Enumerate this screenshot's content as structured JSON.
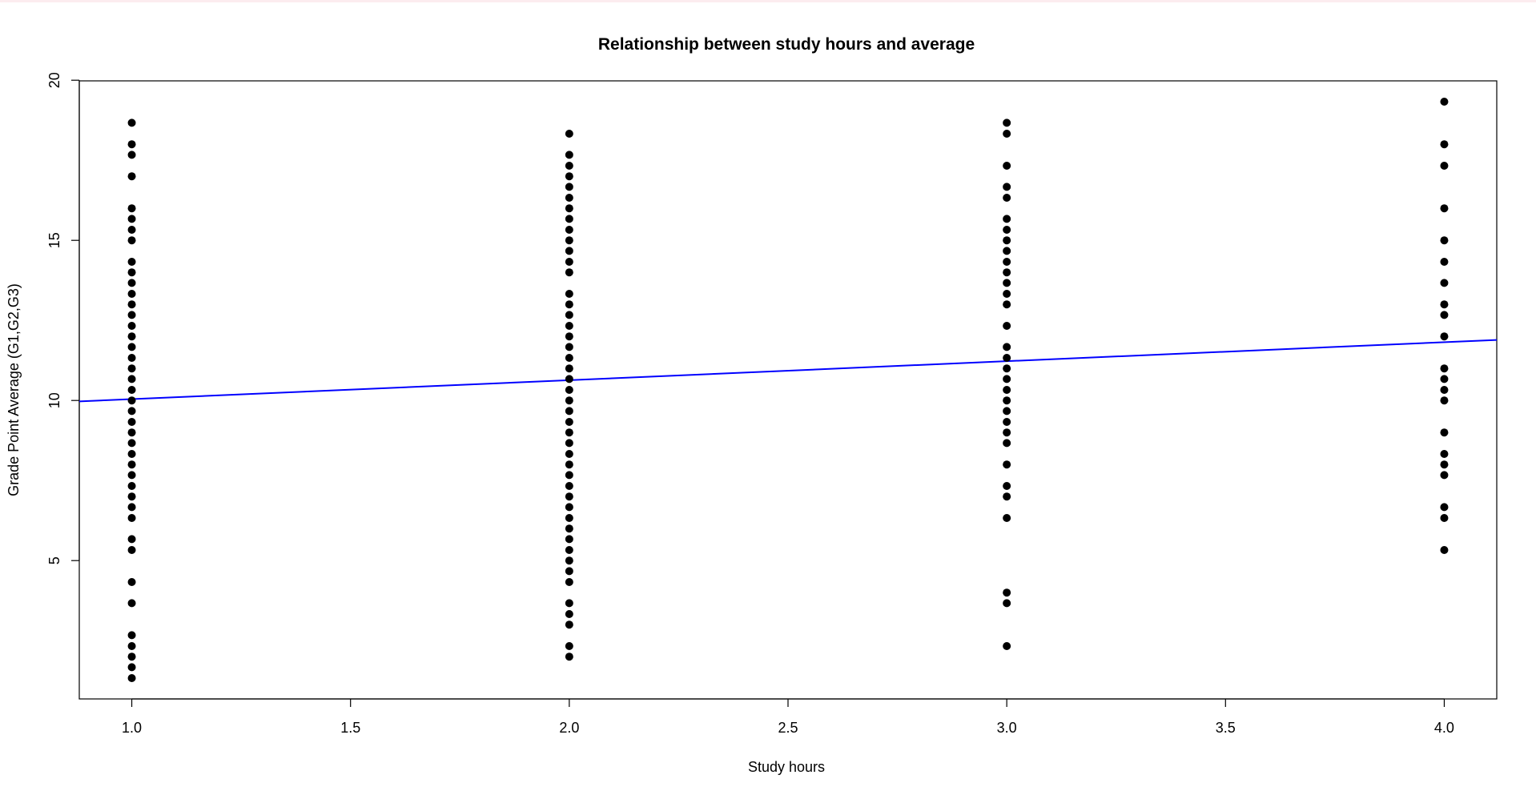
{
  "chart_data": {
    "type": "scatter",
    "title": "Relationship between study hours and average",
    "xlabel": "Study hours",
    "ylabel": "Grade Point Average (G1,G2,G3)",
    "xlim": [
      0.88,
      4.12
    ],
    "ylim": [
      0.68,
      19.98
    ],
    "x_ticks": [
      "1.0",
      "1.5",
      "2.0",
      "2.5",
      "3.0",
      "3.5",
      "4.0"
    ],
    "y_ticks": [
      "5",
      "10",
      "15",
      "20"
    ],
    "grid": false,
    "legend": "none",
    "point_color": "#000000",
    "line_color": "#0000ff",
    "series": [
      {
        "type": "scatter",
        "points": [
          [
            1,
            18.67
          ],
          [
            1,
            18.0
          ],
          [
            1,
            17.67
          ],
          [
            1,
            17.0
          ],
          [
            1,
            16.0
          ],
          [
            1,
            15.67
          ],
          [
            1,
            15.33
          ],
          [
            1,
            15.0
          ],
          [
            1,
            14.33
          ],
          [
            1,
            14.0
          ],
          [
            1,
            13.67
          ],
          [
            1,
            13.33
          ],
          [
            1,
            13.0
          ],
          [
            1,
            12.67
          ],
          [
            1,
            12.33
          ],
          [
            1,
            12.0
          ],
          [
            1,
            11.67
          ],
          [
            1,
            11.33
          ],
          [
            1,
            11.0
          ],
          [
            1,
            10.67
          ],
          [
            1,
            10.33
          ],
          [
            1,
            10.0
          ],
          [
            1,
            9.67
          ],
          [
            1,
            9.33
          ],
          [
            1,
            9.0
          ],
          [
            1,
            8.67
          ],
          [
            1,
            8.33
          ],
          [
            1,
            8.0
          ],
          [
            1,
            7.67
          ],
          [
            1,
            7.33
          ],
          [
            1,
            7.0
          ],
          [
            1,
            6.67
          ],
          [
            1,
            6.33
          ],
          [
            1,
            5.67
          ],
          [
            1,
            5.33
          ],
          [
            1,
            4.33
          ],
          [
            1,
            3.67
          ],
          [
            1,
            2.67
          ],
          [
            1,
            2.33
          ],
          [
            1,
            2.0
          ],
          [
            1,
            1.67
          ],
          [
            1,
            1.33
          ],
          [
            2,
            18.33
          ],
          [
            2,
            17.67
          ],
          [
            2,
            17.33
          ],
          [
            2,
            17.0
          ],
          [
            2,
            16.67
          ],
          [
            2,
            16.33
          ],
          [
            2,
            16.0
          ],
          [
            2,
            15.67
          ],
          [
            2,
            15.33
          ],
          [
            2,
            15.0
          ],
          [
            2,
            14.67
          ],
          [
            2,
            14.33
          ],
          [
            2,
            14.0
          ],
          [
            2,
            13.33
          ],
          [
            2,
            13.0
          ],
          [
            2,
            12.67
          ],
          [
            2,
            12.33
          ],
          [
            2,
            12.0
          ],
          [
            2,
            11.67
          ],
          [
            2,
            11.33
          ],
          [
            2,
            11.0
          ],
          [
            2,
            10.67
          ],
          [
            2,
            10.33
          ],
          [
            2,
            10.0
          ],
          [
            2,
            9.67
          ],
          [
            2,
            9.33
          ],
          [
            2,
            9.0
          ],
          [
            2,
            8.67
          ],
          [
            2,
            8.33
          ],
          [
            2,
            8.0
          ],
          [
            2,
            7.67
          ],
          [
            2,
            7.33
          ],
          [
            2,
            7.0
          ],
          [
            2,
            6.67
          ],
          [
            2,
            6.33
          ],
          [
            2,
            6.0
          ],
          [
            2,
            5.67
          ],
          [
            2,
            5.33
          ],
          [
            2,
            5.0
          ],
          [
            2,
            4.67
          ],
          [
            2,
            4.33
          ],
          [
            2,
            3.67
          ],
          [
            2,
            3.33
          ],
          [
            2,
            3.0
          ],
          [
            2,
            2.33
          ],
          [
            2,
            2.0
          ],
          [
            3,
            18.67
          ],
          [
            3,
            18.33
          ],
          [
            3,
            17.33
          ],
          [
            3,
            16.67
          ],
          [
            3,
            16.33
          ],
          [
            3,
            15.67
          ],
          [
            3,
            15.33
          ],
          [
            3,
            15.0
          ],
          [
            3,
            14.67
          ],
          [
            3,
            14.33
          ],
          [
            3,
            14.0
          ],
          [
            3,
            13.67
          ],
          [
            3,
            13.33
          ],
          [
            3,
            13.0
          ],
          [
            3,
            12.33
          ],
          [
            3,
            11.67
          ],
          [
            3,
            11.33
          ],
          [
            3,
            11.0
          ],
          [
            3,
            10.67
          ],
          [
            3,
            10.33
          ],
          [
            3,
            10.0
          ],
          [
            3,
            9.67
          ],
          [
            3,
            9.33
          ],
          [
            3,
            9.0
          ],
          [
            3,
            8.67
          ],
          [
            3,
            8.0
          ],
          [
            3,
            7.33
          ],
          [
            3,
            7.0
          ],
          [
            3,
            6.33
          ],
          [
            3,
            4.0
          ],
          [
            3,
            3.67
          ],
          [
            3,
            2.33
          ],
          [
            4,
            19.33
          ],
          [
            4,
            18.0
          ],
          [
            4,
            17.33
          ],
          [
            4,
            16.0
          ],
          [
            4,
            15.0
          ],
          [
            4,
            14.33
          ],
          [
            4,
            13.67
          ],
          [
            4,
            13.0
          ],
          [
            4,
            12.67
          ],
          [
            4,
            12.0
          ],
          [
            4,
            11.0
          ],
          [
            4,
            10.67
          ],
          [
            4,
            10.33
          ],
          [
            4,
            10.0
          ],
          [
            4,
            9.0
          ],
          [
            4,
            8.33
          ],
          [
            4,
            8.0
          ],
          [
            4,
            7.67
          ],
          [
            4,
            6.67
          ],
          [
            4,
            6.33
          ],
          [
            4,
            5.33
          ]
        ]
      },
      {
        "type": "line",
        "x": [
          0.88,
          4.12
        ],
        "y": [
          9.97,
          11.89
        ]
      }
    ]
  }
}
